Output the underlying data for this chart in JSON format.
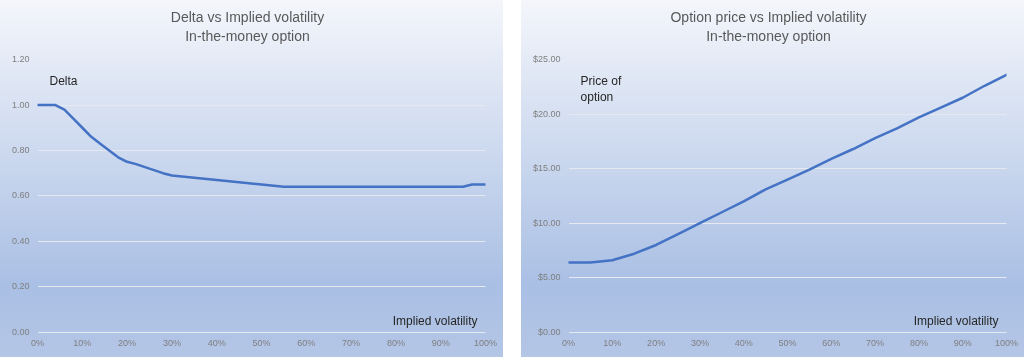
{
  "chart_data": [
    {
      "type": "line",
      "title": "Delta vs Implied volatility",
      "subtitle": "In-the-money option",
      "xlabel": "Implied volatility",
      "ylabel": "Delta",
      "x": [
        0,
        4,
        6,
        8,
        10,
        12,
        14,
        16,
        18,
        20,
        22,
        25,
        28,
        30,
        35,
        40,
        45,
        50,
        55,
        60,
        62,
        70,
        80,
        82,
        90,
        95,
        97,
        100
      ],
      "series": [
        {
          "color": "#4472c4",
          "values": [
            1.0,
            1.0,
            0.98,
            0.94,
            0.9,
            0.86,
            0.83,
            0.8,
            0.77,
            0.75,
            0.74,
            0.72,
            0.7,
            0.69,
            0.68,
            0.67,
            0.66,
            0.65,
            0.64,
            0.64,
            0.64,
            0.64,
            0.64,
            0.64,
            0.64,
            0.64,
            0.65,
            0.65
          ]
        }
      ],
      "xlim": [
        0,
        100
      ],
      "xticks": [
        {
          "value": 0,
          "label": "0%"
        },
        {
          "value": 10,
          "label": "10%"
        },
        {
          "value": 20,
          "label": "20%"
        },
        {
          "value": 30,
          "label": "30%"
        },
        {
          "value": 40,
          "label": "40%"
        },
        {
          "value": 50,
          "label": "50%"
        },
        {
          "value": 60,
          "label": "60%"
        },
        {
          "value": 70,
          "label": "70%"
        },
        {
          "value": 80,
          "label": "80%"
        },
        {
          "value": 90,
          "label": "90%"
        },
        {
          "value": 100,
          "label": "100%"
        }
      ],
      "ylim": [
        0,
        1.2
      ],
      "yticks": [
        {
          "value": 0,
          "label": "0.00"
        },
        {
          "value": 0.2,
          "label": "0.20"
        },
        {
          "value": 0.4,
          "label": "0.40"
        },
        {
          "value": 0.6,
          "label": "0.60"
        },
        {
          "value": 0.8,
          "label": "0.80"
        },
        {
          "value": 1,
          "label": "1.00"
        },
        {
          "value": 1.2,
          "label": "1.20"
        }
      ],
      "grid": "y",
      "legend": false,
      "marker": "none",
      "line_style": "solid"
    },
    {
      "type": "line",
      "title": "Option price vs Implied volatility",
      "subtitle": "In-the-money option",
      "xlabel": "Implied volatility",
      "ylabel": "Price of option",
      "x": [
        0,
        5,
        10,
        15,
        20,
        25,
        30,
        35,
        40,
        45,
        50,
        55,
        60,
        65,
        70,
        75,
        80,
        85,
        90,
        95,
        100
      ],
      "series": [
        {
          "color": "#4472c4",
          "values": [
            6.4,
            6.4,
            6.6,
            7.2,
            8.0,
            9.0,
            10.0,
            11.0,
            12.0,
            13.1,
            14.0,
            14.9,
            15.9,
            16.8,
            17.8,
            18.7,
            19.7,
            20.6,
            21.5,
            22.6,
            23.6
          ]
        }
      ],
      "xlim": [
        0,
        100
      ],
      "xticks": [
        {
          "value": 0,
          "label": "0%"
        },
        {
          "value": 10,
          "label": "10%"
        },
        {
          "value": 20,
          "label": "20%"
        },
        {
          "value": 30,
          "label": "30%"
        },
        {
          "value": 40,
          "label": "40%"
        },
        {
          "value": 50,
          "label": "50%"
        },
        {
          "value": 60,
          "label": "60%"
        },
        {
          "value": 70,
          "label": "70%"
        },
        {
          "value": 80,
          "label": "80%"
        },
        {
          "value": 90,
          "label": "90%"
        },
        {
          "value": 100,
          "label": "100%"
        }
      ],
      "ylim": [
        0,
        25
      ],
      "yticks": [
        {
          "value": 0,
          "label": "$0.00"
        },
        {
          "value": 5,
          "label": "$5.00"
        },
        {
          "value": 10,
          "label": "$10.00"
        },
        {
          "value": 15,
          "label": "$15.00"
        },
        {
          "value": 20,
          "label": "$20.00"
        },
        {
          "value": 25,
          "label": "$25.00"
        }
      ],
      "grid": "y",
      "legend": false,
      "marker": "none",
      "line_style": "solid"
    }
  ]
}
